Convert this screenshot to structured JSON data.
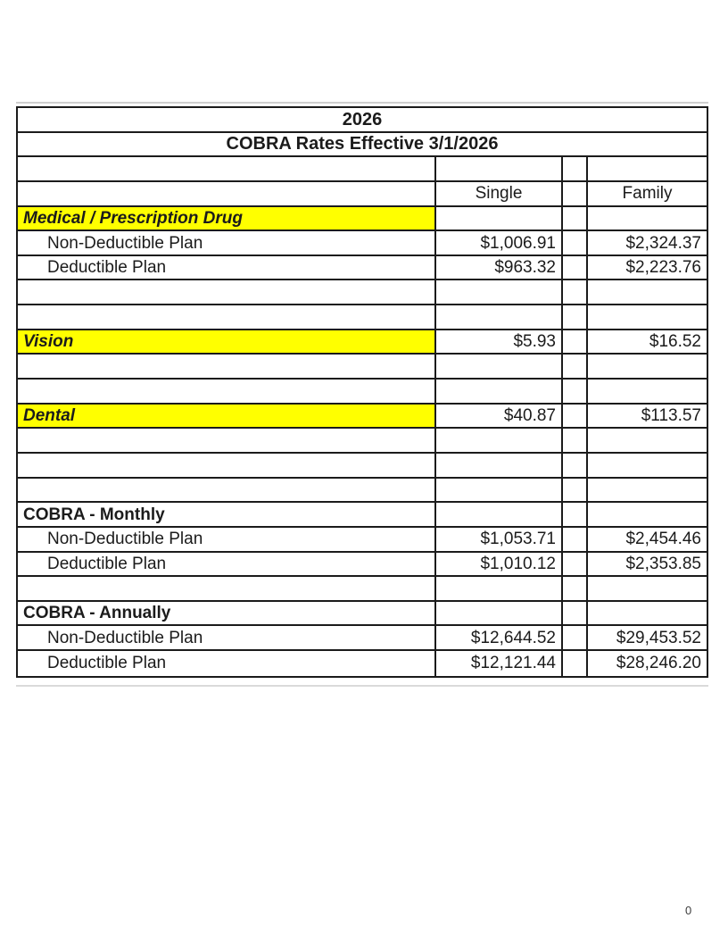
{
  "page": {
    "footer_page_number": "0"
  },
  "colors": {
    "highlight": "#FFFF00",
    "border": "#1B1B1B",
    "text": "#1B1B1B",
    "page_background": "#FFFFFF"
  },
  "table": {
    "year": "2026",
    "title": "COBRA Rates Effective 3/1/2026",
    "column_headers": {
      "single": "Single",
      "family": "Family"
    },
    "rows": [
      {
        "style": "year",
        "label": "2026",
        "single": "",
        "family": ""
      },
      {
        "style": "title",
        "label": "COBRA Rates Effective 3/1/2026",
        "single": "",
        "family": ""
      },
      {
        "style": "empty",
        "label": "",
        "single": "",
        "family": ""
      },
      {
        "style": "header",
        "label": "",
        "single": "Single",
        "family": "Family"
      },
      {
        "style": "yellow",
        "label": "Medical / Prescription Drug",
        "single": "",
        "family": ""
      },
      {
        "style": "item",
        "label": "Non-Deductible Plan",
        "single": "$1,006.91",
        "family": "$2,324.37"
      },
      {
        "style": "item",
        "label": "Deductible Plan",
        "single": "$963.32",
        "family": "$2,223.76"
      },
      {
        "style": "empty",
        "label": "",
        "single": "",
        "family": ""
      },
      {
        "style": "empty",
        "label": "",
        "single": "",
        "family": ""
      },
      {
        "style": "yellow",
        "label": "Vision",
        "single": "$5.93",
        "family": "$16.52"
      },
      {
        "style": "empty",
        "label": "",
        "single": "",
        "family": ""
      },
      {
        "style": "empty",
        "label": "",
        "single": "",
        "family": ""
      },
      {
        "style": "yellow",
        "label": "Dental",
        "single": "$40.87",
        "family": "$113.57"
      },
      {
        "style": "empty",
        "label": "",
        "single": "",
        "family": ""
      },
      {
        "style": "empty",
        "label": "",
        "single": "",
        "family": ""
      },
      {
        "style": "empty",
        "label": "",
        "single": "",
        "family": ""
      },
      {
        "style": "section",
        "label": "COBRA - Monthly",
        "single": "",
        "family": ""
      },
      {
        "style": "item",
        "label": "Non-Deductible Plan",
        "single": "$1,053.71",
        "family": "$2,454.46"
      },
      {
        "style": "item",
        "label": "Deductible Plan",
        "single": "$1,010.12",
        "family": "$2,353.85"
      },
      {
        "style": "empty",
        "label": "",
        "single": "",
        "family": ""
      },
      {
        "style": "section",
        "label": "COBRA - Annually",
        "single": "",
        "family": ""
      },
      {
        "style": "item",
        "label": "Non-Deductible Plan",
        "single": "$12,644.52",
        "family": "$29,453.52"
      },
      {
        "style": "item",
        "label": "Deductible Plan",
        "single": "$12,121.44",
        "family": "$28,246.20"
      }
    ]
  }
}
